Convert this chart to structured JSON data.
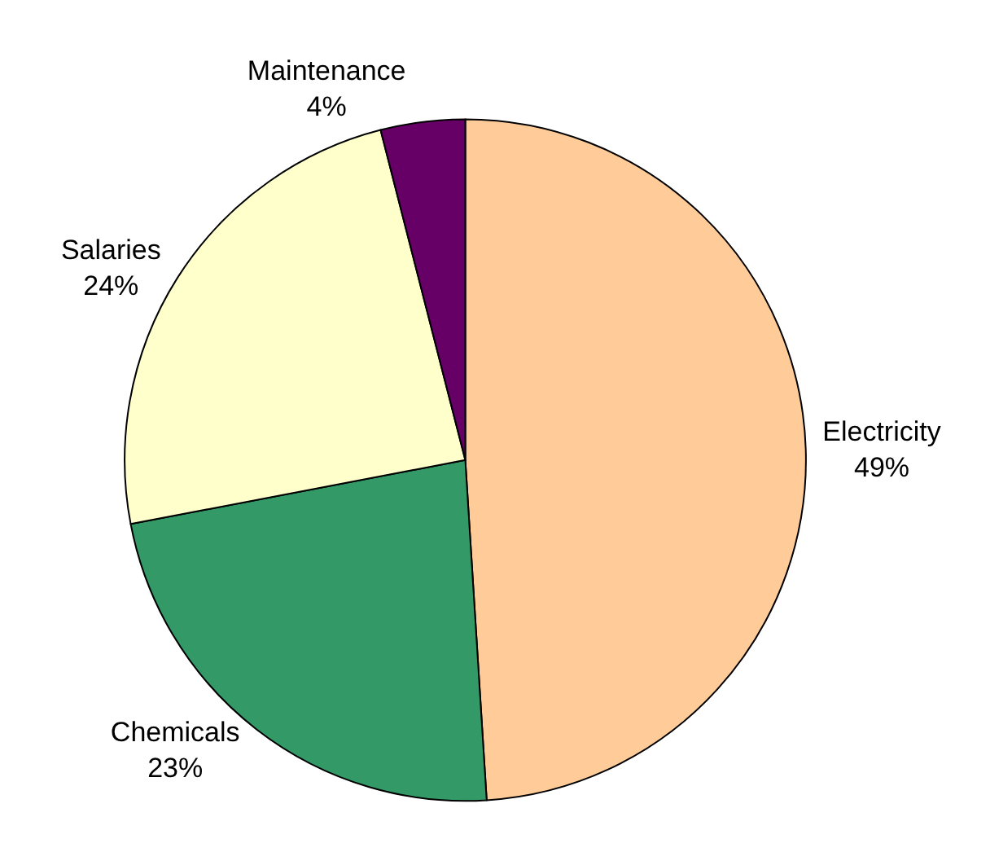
{
  "chart_data": {
    "type": "pie",
    "categories": [
      "Electricity",
      "Chemicals",
      "Salaries",
      "Maintenance"
    ],
    "values": [
      49,
      23,
      24,
      4
    ],
    "value_labels": [
      "49%",
      "23%",
      "24%",
      "4%"
    ],
    "colors": [
      "#ffcc99",
      "#339966",
      "#ffffcc",
      "#660066"
    ],
    "legend": false
  }
}
